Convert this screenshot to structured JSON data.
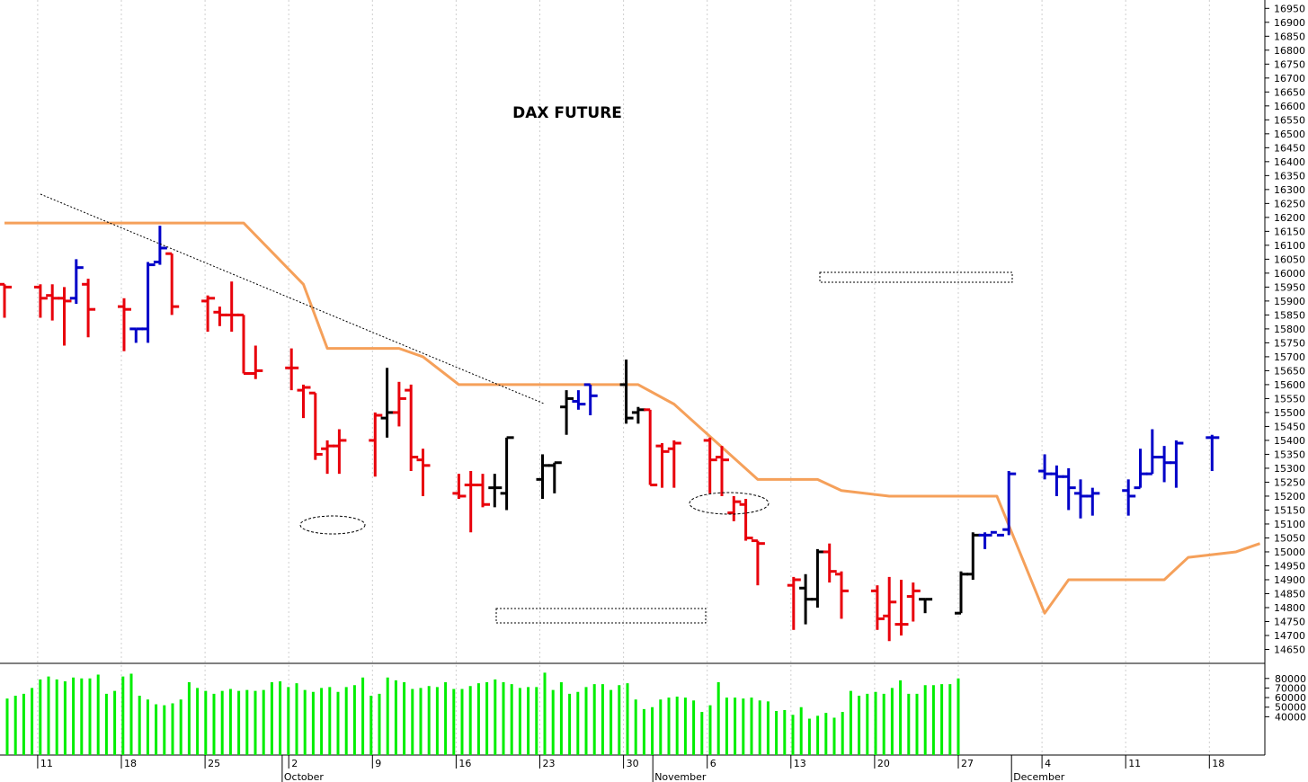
{
  "chart_data": {
    "type": "ohlc-bar",
    "title": "DAX FUTURE",
    "price_axis": {
      "ylim": [
        14600,
        16980
      ],
      "ticks": [
        14650,
        14700,
        14750,
        14800,
        14850,
        14900,
        14950,
        15000,
        15050,
        15100,
        15150,
        15200,
        15250,
        15300,
        15350,
        15400,
        15450,
        15500,
        15550,
        15600,
        15650,
        15700,
        15750,
        15800,
        15850,
        15900,
        15950,
        16000,
        16050,
        16100,
        16150,
        16200,
        16250,
        16300,
        16350,
        16400,
        16450,
        16500,
        16550,
        16600,
        16650,
        16700,
        16750,
        16800,
        16850,
        16900,
        16950
      ],
      "position": "right"
    },
    "volume_axis": {
      "ylim": [
        0,
        92000
      ],
      "ticks": [
        "40000",
        "50000",
        "60000",
        "70000",
        "80000"
      ],
      "position": "right"
    },
    "x_axis": {
      "day_labels": [
        "11",
        "18",
        "25",
        "2",
        "9",
        "16",
        "23",
        "30",
        "6",
        "13",
        "20",
        "27",
        "4",
        "11",
        "18"
      ],
      "month_labels": [
        "October",
        "November",
        "December"
      ],
      "first_date": "2023-09-08",
      "last_date": "2023-12-18"
    },
    "bar_colors": {
      "down": "#e8000b",
      "up": "#0000c8",
      "neutral": "#000000"
    },
    "line_color": "#f5a05a",
    "volume_color": "#00ee00",
    "grid": "vertical dotted",
    "bars": [
      {
        "d": "2023-09-08",
        "o": 15960,
        "h": 15960,
        "l": 15840,
        "c": 15950,
        "t": "down"
      },
      {
        "d": "2023-09-11",
        "o": 15950,
        "h": 15960,
        "l": 15840,
        "c": 15910,
        "t": "down"
      },
      {
        "d": "2023-09-12",
        "o": 15920,
        "h": 15960,
        "l": 15830,
        "c": 15910,
        "t": "down"
      },
      {
        "d": "2023-09-13",
        "o": 15910,
        "h": 15950,
        "l": 15740,
        "c": 15900,
        "t": "down"
      },
      {
        "d": "2023-09-14",
        "o": 15910,
        "h": 16050,
        "l": 15890,
        "c": 16020,
        "t": "up"
      },
      {
        "d": "2023-09-15",
        "o": 15960,
        "h": 15980,
        "l": 15770,
        "c": 15870,
        "t": "down"
      },
      {
        "d": "2023-09-18",
        "o": 15880,
        "h": 15910,
        "l": 15720,
        "c": 15870,
        "t": "down"
      },
      {
        "d": "2023-09-19",
        "o": 15800,
        "h": 15800,
        "l": 15750,
        "c": 15800,
        "t": "up"
      },
      {
        "d": "2023-09-20",
        "o": 15800,
        "h": 16040,
        "l": 15750,
        "c": 16030,
        "t": "up"
      },
      {
        "d": "2023-09-21",
        "o": 16040,
        "h": 16170,
        "l": 16030,
        "c": 16090,
        "t": "up"
      },
      {
        "d": "2023-09-22",
        "o": 16070,
        "h": 16070,
        "l": 15850,
        "c": 15880,
        "t": "down"
      },
      {
        "d": "2023-09-25",
        "o": 15900,
        "h": 15920,
        "l": 15790,
        "c": 15910,
        "t": "down"
      },
      {
        "d": "2023-09-26",
        "o": 15860,
        "h": 15880,
        "l": 15810,
        "c": 15850,
        "t": "down"
      },
      {
        "d": "2023-09-27",
        "o": 15850,
        "h": 15970,
        "l": 15790,
        "c": 15850,
        "t": "down"
      },
      {
        "d": "2023-09-28",
        "o": 15850,
        "h": 15850,
        "l": 15640,
        "c": 15640,
        "t": "down"
      },
      {
        "d": "2023-09-29",
        "o": 15640,
        "h": 15740,
        "l": 15620,
        "c": 15650,
        "t": "down"
      },
      {
        "d": "2023-10-02",
        "o": 15660,
        "h": 15730,
        "l": 15580,
        "c": 15660,
        "t": "down"
      },
      {
        "d": "2023-10-03",
        "o": 15580,
        "h": 15600,
        "l": 15480,
        "c": 15590,
        "t": "down"
      },
      {
        "d": "2023-10-04",
        "o": 15570,
        "h": 15570,
        "l": 15330,
        "c": 15350,
        "t": "down"
      },
      {
        "d": "2023-10-05",
        "o": 15370,
        "h": 15400,
        "l": 15280,
        "c": 15380,
        "t": "down"
      },
      {
        "d": "2023-10-06",
        "o": 15380,
        "h": 15440,
        "l": 15280,
        "c": 15400,
        "t": "down"
      },
      {
        "d": "2023-10-09",
        "o": 15400,
        "h": 15500,
        "l": 15270,
        "c": 15490,
        "t": "down"
      },
      {
        "d": "2023-10-10",
        "o": 15480,
        "h": 15660,
        "l": 15410,
        "c": 15500,
        "t": "neutral"
      },
      {
        "d": "2023-10-11",
        "o": 15500,
        "h": 15610,
        "l": 15450,
        "c": 15550,
        "t": "down"
      },
      {
        "d": "2023-10-12",
        "o": 15580,
        "h": 15600,
        "l": 15290,
        "c": 15340,
        "t": "down"
      },
      {
        "d": "2023-10-13",
        "o": 15330,
        "h": 15370,
        "l": 15200,
        "c": 15310,
        "t": "down"
      },
      {
        "d": "2023-10-16",
        "o": 15210,
        "h": 15280,
        "l": 15190,
        "c": 15200,
        "t": "down"
      },
      {
        "d": "2023-10-17",
        "o": 15240,
        "h": 15290,
        "l": 15070,
        "c": 15240,
        "t": "down"
      },
      {
        "d": "2023-10-18",
        "o": 15240,
        "h": 15280,
        "l": 15160,
        "c": 15170,
        "t": "down"
      },
      {
        "d": "2023-10-19",
        "o": 15230,
        "h": 15280,
        "l": 15160,
        "c": 15230,
        "t": "neutral"
      },
      {
        "d": "2023-10-20",
        "o": 15210,
        "h": 15410,
        "l": 15150,
        "c": 15410,
        "t": "neutral"
      },
      {
        "d": "2023-10-23",
        "o": 15260,
        "h": 15350,
        "l": 15190,
        "c": 15310,
        "t": "neutral"
      },
      {
        "d": "2023-10-24",
        "o": 15310,
        "h": 15320,
        "l": 15210,
        "c": 15320,
        "t": "neutral"
      },
      {
        "d": "2023-10-25",
        "o": 15520,
        "h": 15580,
        "l": 15420,
        "c": 15550,
        "t": "neutral"
      },
      {
        "d": "2023-10-26",
        "o": 15540,
        "h": 15580,
        "l": 15510,
        "c": 15530,
        "t": "up"
      },
      {
        "d": "2023-10-27",
        "o": 15600,
        "h": 15600,
        "l": 15490,
        "c": 15560,
        "t": "up"
      },
      {
        "d": "2023-10-30",
        "o": 15600,
        "h": 15690,
        "l": 15460,
        "c": 15480,
        "t": "neutral"
      },
      {
        "d": "2023-10-31",
        "o": 15500,
        "h": 15520,
        "l": 15460,
        "c": 15510,
        "t": "neutral"
      },
      {
        "d": "2023-11-01",
        "o": 15510,
        "h": 15510,
        "l": 15240,
        "c": 15240,
        "t": "down"
      },
      {
        "d": "2023-11-02",
        "o": 15380,
        "h": 15390,
        "l": 15230,
        "c": 15360,
        "t": "down"
      },
      {
        "d": "2023-11-03",
        "o": 15370,
        "h": 15400,
        "l": 15230,
        "c": 15390,
        "t": "down"
      },
      {
        "d": "2023-11-06",
        "o": 15400,
        "h": 15410,
        "l": 15210,
        "c": 15330,
        "t": "down"
      },
      {
        "d": "2023-11-07",
        "o": 15340,
        "h": 15380,
        "l": 15200,
        "c": 15330,
        "t": "down"
      },
      {
        "d": "2023-11-08",
        "o": 15140,
        "h": 15200,
        "l": 15110,
        "c": 15180,
        "t": "down"
      },
      {
        "d": "2023-11-09",
        "o": 15170,
        "h": 15190,
        "l": 15040,
        "c": 15050,
        "t": "down"
      },
      {
        "d": "2023-11-10",
        "o": 15040,
        "h": 15040,
        "l": 14880,
        "c": 15030,
        "t": "down"
      },
      {
        "d": "2023-11-13",
        "o": 14880,
        "h": 14910,
        "l": 14720,
        "c": 14900,
        "t": "down"
      },
      {
        "d": "2023-11-14",
        "o": 14870,
        "h": 14920,
        "l": 14740,
        "c": 14830,
        "t": "neutral"
      },
      {
        "d": "2023-11-15",
        "o": 14830,
        "h": 15010,
        "l": 14800,
        "c": 15000,
        "t": "neutral"
      },
      {
        "d": "2023-11-16",
        "o": 15000,
        "h": 15030,
        "l": 14890,
        "c": 14930,
        "t": "down"
      },
      {
        "d": "2023-11-17",
        "o": 14920,
        "h": 14930,
        "l": 14760,
        "c": 14860,
        "t": "down"
      },
      {
        "d": "2023-11-20",
        "o": 14860,
        "h": 14880,
        "l": 14720,
        "c": 14760,
        "t": "down"
      },
      {
        "d": "2023-11-21",
        "o": 14770,
        "h": 14910,
        "l": 14680,
        "c": 14820,
        "t": "down"
      },
      {
        "d": "2023-11-22",
        "o": 14740,
        "h": 14900,
        "l": 14700,
        "c": 14740,
        "t": "down"
      },
      {
        "d": "2023-11-23",
        "o": 14840,
        "h": 14890,
        "l": 14750,
        "c": 14860,
        "t": "down"
      },
      {
        "d": "2023-11-24",
        "o": 14830,
        "h": 14830,
        "l": 14780,
        "c": 14830,
        "t": "neutral"
      },
      {
        "d": "2023-11-27",
        "o": 14780,
        "h": 14930,
        "l": 14780,
        "c": 14920,
        "t": "neutral"
      },
      {
        "d": "2023-11-28",
        "o": 14920,
        "h": 15070,
        "l": 14900,
        "c": 15060,
        "t": "neutral"
      },
      {
        "d": "2023-11-29",
        "o": 15060,
        "h": 15070,
        "l": 15010,
        "c": 15060,
        "t": "up"
      },
      {
        "d": "2023-11-30",
        "o": 15070,
        "h": 15070,
        "l": 15070,
        "c": 15060,
        "t": "up"
      },
      {
        "d": "2023-12-01",
        "o": 15080,
        "h": 15290,
        "l": 15060,
        "c": 15280,
        "t": "up"
      },
      {
        "d": "2023-12-04",
        "o": 15290,
        "h": 15350,
        "l": 15260,
        "c": 15280,
        "t": "up"
      },
      {
        "d": "2023-12-05",
        "o": 15280,
        "h": 15310,
        "l": 15200,
        "c": 15270,
        "t": "up"
      },
      {
        "d": "2023-12-06",
        "o": 15270,
        "h": 15300,
        "l": 15150,
        "c": 15230,
        "t": "up"
      },
      {
        "d": "2023-12-07",
        "o": 15210,
        "h": 15260,
        "l": 15120,
        "c": 15200,
        "t": "up"
      },
      {
        "d": "2023-12-08",
        "o": 15200,
        "h": 15230,
        "l": 15130,
        "c": 15210,
        "t": "up"
      },
      {
        "d": "2023-12-11",
        "o": 15220,
        "h": 15260,
        "l": 15130,
        "c": 15200,
        "t": "up"
      },
      {
        "d": "2023-12-12",
        "o": 15230,
        "h": 15370,
        "l": 15230,
        "c": 15280,
        "t": "up"
      },
      {
        "d": "2023-12-13",
        "o": 15280,
        "h": 15440,
        "l": 15280,
        "c": 15340,
        "t": "up"
      },
      {
        "d": "2023-12-14",
        "o": 15340,
        "h": 15380,
        "l": 15250,
        "c": 15320,
        "t": "up"
      },
      {
        "d": "2023-12-15",
        "o": 15320,
        "h": 15400,
        "l": 15230,
        "c": 15390,
        "t": "up"
      },
      {
        "d": "2023-12-18",
        "o": 15410,
        "h": 15420,
        "l": 15290,
        "c": 15410,
        "t": "up"
      }
    ],
    "volume": [
      [
        59,
        62
      ],
      [
        64,
        70
      ],
      [
        79,
        82
      ],
      [
        79,
        77
      ],
      [
        81,
        80
      ],
      [
        80,
        84
      ],
      [
        64,
        67
      ],
      [
        82,
        85
      ],
      [
        62,
        58
      ],
      [
        53,
        52
      ],
      [
        54,
        58
      ],
      [
        76,
        70
      ],
      [
        67,
        64
      ],
      [
        67,
        69
      ],
      [
        67,
        68
      ],
      [
        67,
        68
      ],
      [
        76,
        77
      ],
      [
        71,
        75
      ],
      [
        68,
        66
      ],
      [
        70,
        71
      ],
      [
        66,
        71
      ],
      [
        73,
        81
      ],
      [
        62,
        64
      ],
      [
        81,
        78
      ],
      [
        76,
        69
      ],
      [
        70,
        72
      ],
      [
        71,
        76
      ],
      [
        69,
        69
      ],
      [
        72,
        75
      ],
      [
        76,
        79
      ],
      [
        76,
        74
      ],
      [
        70,
        71
      ],
      [
        71,
        86
      ],
      [
        68,
        76
      ],
      [
        64,
        66
      ],
      [
        71,
        74
      ],
      [
        74,
        68
      ],
      [
        73,
        75
      ],
      [
        58,
        48
      ],
      [
        50,
        58
      ],
      [
        60,
        61
      ],
      [
        60,
        57
      ],
      [
        45,
        52
      ],
      [
        76,
        60
      ],
      [
        60,
        59
      ],
      [
        60,
        57
      ],
      [
        56,
        46
      ],
      [
        47,
        42
      ],
      [
        50,
        38
      ],
      [
        41,
        44
      ],
      [
        39,
        45
      ],
      [
        67,
        62
      ],
      [
        64,
        66
      ],
      [
        64,
        70
      ],
      [
        78,
        64
      ],
      [
        64,
        73
      ],
      [
        73,
        74
      ],
      [
        74,
        80
      ]
    ],
    "ma_line": [
      [
        "2023-09-08",
        16180
      ],
      [
        "2023-09-21",
        16180
      ],
      [
        "2023-09-28",
        16180
      ],
      [
        "2023-10-03",
        15960
      ],
      [
        "2023-10-05",
        15730
      ],
      [
        "2023-10-11",
        15730
      ],
      [
        "2023-10-13",
        15700
      ],
      [
        "2023-10-16",
        15600
      ],
      [
        "2023-10-31",
        15600
      ],
      [
        "2023-11-03",
        15530
      ],
      [
        "2023-11-10",
        15260
      ],
      [
        "2023-11-15",
        15260
      ],
      [
        "2023-11-17",
        15220
      ],
      [
        "2023-11-21",
        15200
      ],
      [
        "2023-11-30",
        15200
      ],
      [
        "2023-12-04",
        14780
      ],
      [
        "2023-12-06",
        14900
      ],
      [
        "2023-12-14",
        14900
      ],
      [
        "2023-12-16",
        14980
      ],
      [
        "2023-12-20",
        15000
      ],
      [
        "2023-12-22",
        15030
      ]
    ],
    "annotations": [
      "dotted trendline",
      "dotted ellipse",
      "dotted rectangle"
    ]
  }
}
